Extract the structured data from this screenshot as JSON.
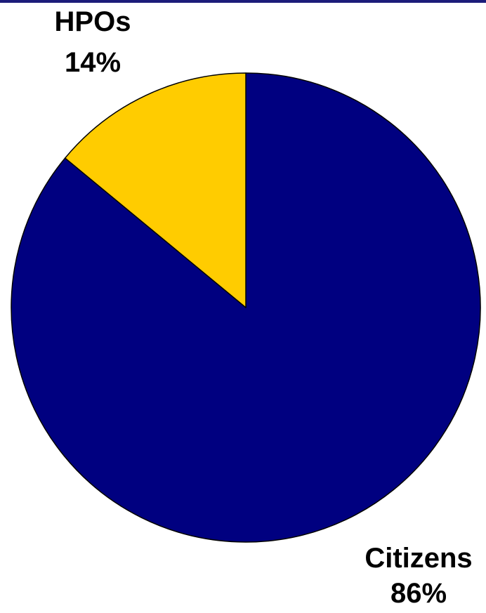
{
  "chart_data": {
    "type": "pie",
    "slices": [
      {
        "label": "Citizens",
        "value": 86,
        "value_label": "86%",
        "color": "#000080"
      },
      {
        "label": "HPOs",
        "value": 14,
        "value_label": "14%",
        "color": "#FFCC00"
      }
    ],
    "start_angle_deg": 0,
    "direction": "clockwise"
  }
}
